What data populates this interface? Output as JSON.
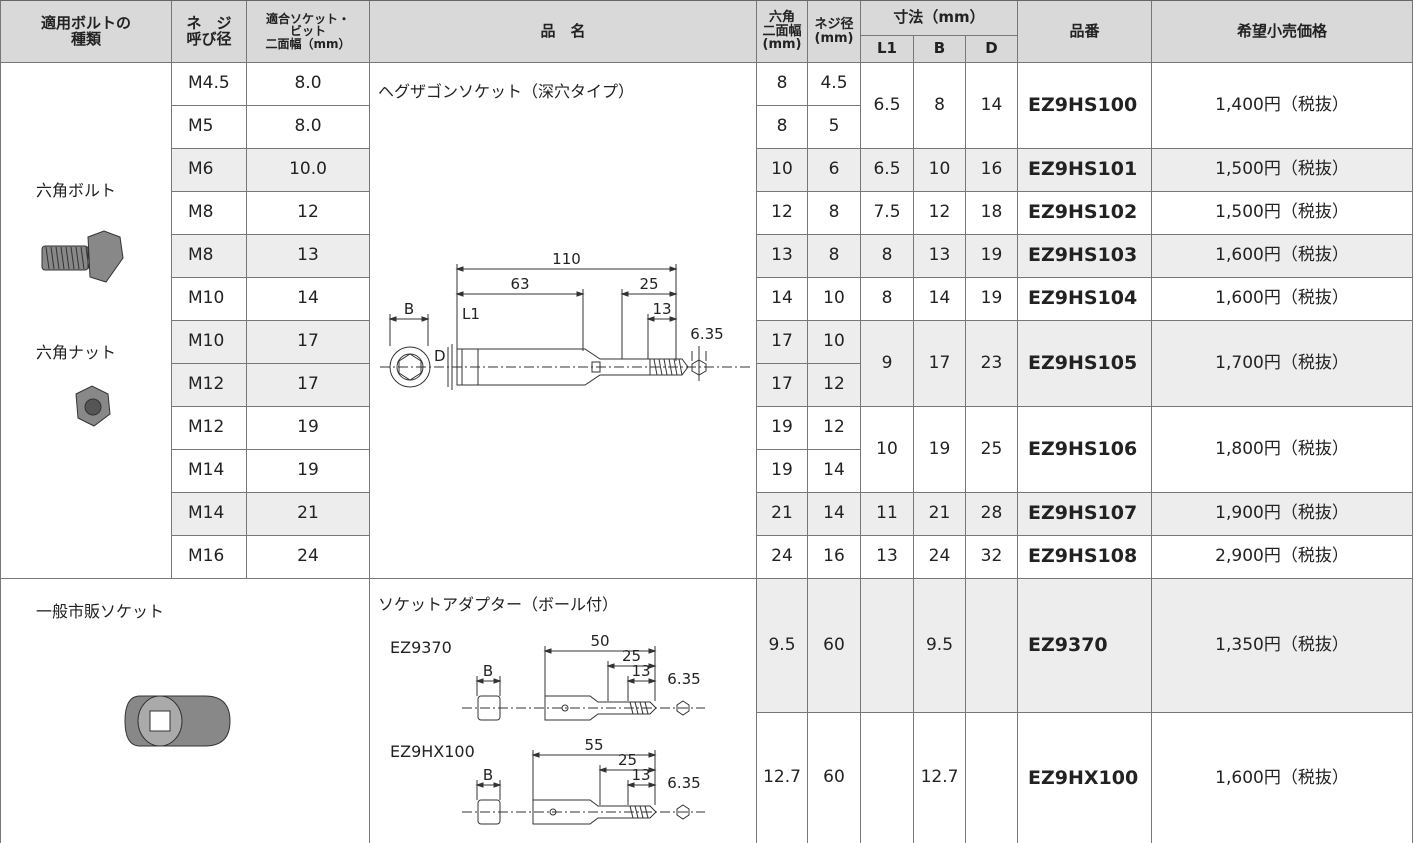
{
  "header": {
    "bolt_type": "適用ボルトの\n種類",
    "thread": "ネ　ジ\n呼び径",
    "socket": "適合ソケット・\nビット\n二面幅（mm）",
    "product": "品　名",
    "hex": "六角\n二面幅\n(mm)",
    "screw": "ネジ径\n(mm)",
    "dims": "寸法（mm）",
    "l1": "L1",
    "b": "B",
    "d": "D",
    "part_no": "品番",
    "price": "希望小売価格"
  },
  "hex_socket": {
    "bolt_label": "六角ボルト",
    "nut_label": "六角ナット",
    "name": "ヘグザゴンソケット（深穴タイプ）",
    "drawing": {
      "total": 110,
      "l1_len": 63,
      "shank": 25,
      "hex_len": 13,
      "bit": 6.35,
      "b": "B",
      "l1": "L1",
      "d": "D"
    },
    "rows": [
      {
        "thread": "M4.5",
        "socket": "8.0",
        "hex": "8",
        "screw": "4.5"
      },
      {
        "thread": "M5",
        "socket": "8.0",
        "hex": "8",
        "screw": "5"
      },
      {
        "thread": "M6",
        "socket": "10.0",
        "hex": "10",
        "screw": "6"
      },
      {
        "thread": "M8",
        "socket": "12",
        "hex": "12",
        "screw": "8"
      },
      {
        "thread": "M8",
        "socket": "13",
        "hex": "13",
        "screw": "8"
      },
      {
        "thread": "M10",
        "socket": "14",
        "hex": "14",
        "screw": "10"
      },
      {
        "thread": "M10",
        "socket": "17",
        "hex": "17",
        "screw": "10"
      },
      {
        "thread": "M12",
        "socket": "17",
        "hex": "17",
        "screw": "12"
      },
      {
        "thread": "M12",
        "socket": "19",
        "hex": "19",
        "screw": "12"
      },
      {
        "thread": "M14",
        "socket": "19",
        "hex": "19",
        "screw": "14"
      },
      {
        "thread": "M14",
        "socket": "21",
        "hex": "21",
        "screw": "14"
      },
      {
        "thread": "M16",
        "socket": "24",
        "hex": "24",
        "screw": "16"
      }
    ],
    "models": [
      {
        "l1": "6.5",
        "b": "8",
        "d": "14",
        "part_no": "EZ9HS100",
        "price": "1,400円（税抜）"
      },
      {
        "l1": "6.5",
        "b": "10",
        "d": "16",
        "part_no": "EZ9HS101",
        "price": "1,500円（税抜）"
      },
      {
        "l1": "7.5",
        "b": "12",
        "d": "18",
        "part_no": "EZ9HS102",
        "price": "1,500円（税抜）"
      },
      {
        "l1": "8",
        "b": "13",
        "d": "19",
        "part_no": "EZ9HS103",
        "price": "1,600円（税抜）"
      },
      {
        "l1": "8",
        "b": "14",
        "d": "19",
        "part_no": "EZ9HS104",
        "price": "1,600円（税抜）"
      },
      {
        "l1": "9",
        "b": "17",
        "d": "23",
        "part_no": "EZ9HS105",
        "price": "1,700円（税抜）"
      },
      {
        "l1": "10",
        "b": "19",
        "d": "25",
        "part_no": "EZ9HS106",
        "price": "1,800円（税抜）"
      },
      {
        "l1": "11",
        "b": "21",
        "d": "28",
        "part_no": "EZ9HS107",
        "price": "1,900円（税抜）"
      },
      {
        "l1": "13",
        "b": "24",
        "d": "32",
        "part_no": "EZ9HS108",
        "price": "2,900円（税抜）"
      }
    ]
  },
  "adapter": {
    "socket_label": "一般市販ソケット",
    "name": "ソケットアダプター（ボール付）",
    "models": [
      {
        "label": "EZ9370",
        "total": 50,
        "shank": 25,
        "hex_len": 13,
        "bit": 6.35,
        "b_mark": "B",
        "hex": "9.5",
        "screw": "60",
        "b": "9.5",
        "part_no": "EZ9370",
        "price": "1,350円（税抜）"
      },
      {
        "label": "EZ9HX100",
        "total": 55,
        "shank": 25,
        "hex_len": 13,
        "bit": 6.35,
        "b_mark": "B",
        "hex": "12.7",
        "screw": "60",
        "b": "12.7",
        "part_no": "EZ9HX100",
        "price": "1,600円（税抜）"
      }
    ]
  }
}
